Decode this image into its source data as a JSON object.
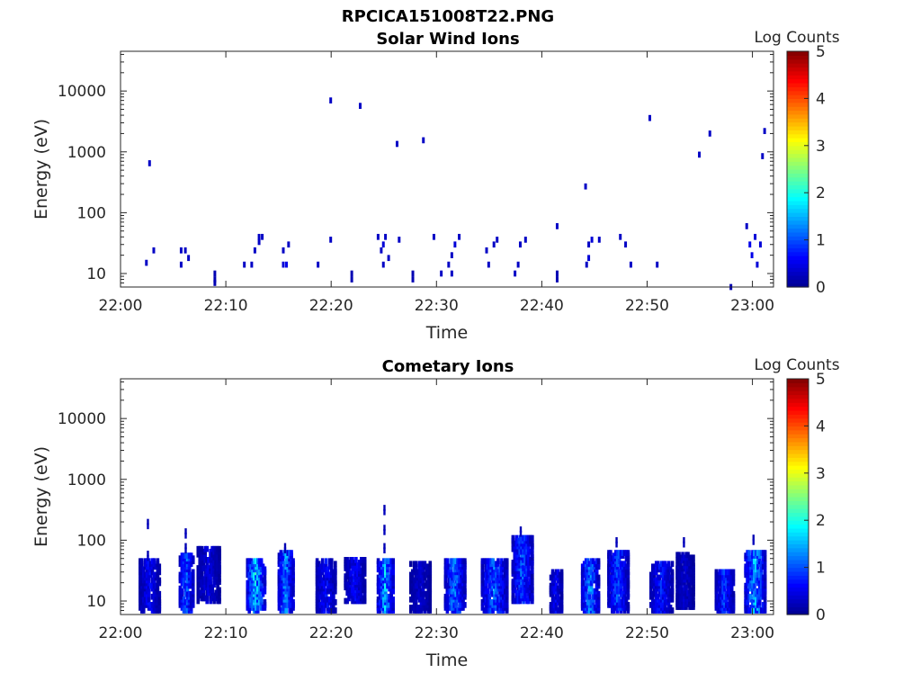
{
  "figure_title": "RPCICA151008T22.PNG",
  "colors": {
    "colormap": [
      "#00008f",
      "#0000ff",
      "#0080ff",
      "#00ffff",
      "#80ff80",
      "#ffff00",
      "#ff8000",
      "#ff0000",
      "#800000"
    ],
    "axis": "#262626"
  },
  "chart_data": [
    {
      "type": "heatmap",
      "title": "Solar Wind Ions",
      "xlabel": "Time",
      "ylabel": "Energy (eV)",
      "x_ticks": [
        "22:00",
        "22:10",
        "22:20",
        "22:30",
        "22:40",
        "22:50",
        "23:00"
      ],
      "x_range_minutes": [
        0,
        62
      ],
      "y_scale": "log",
      "y_ticks": [
        "10",
        "100",
        "1000",
        "10000"
      ],
      "y_range_eV": [
        6,
        45000
      ],
      "colorbar": {
        "label": "Log Counts",
        "range": [
          0,
          5
        ],
        "ticks": [
          "0",
          "1",
          "2",
          "3",
          "4",
          "5"
        ]
      },
      "cells": [
        [
          2.5,
          15,
          0.3
        ],
        [
          2.8,
          650,
          0.3
        ],
        [
          3.2,
          24,
          0.3
        ],
        [
          5.8,
          24,
          0.3
        ],
        [
          5.8,
          14,
          0.3
        ],
        [
          6.2,
          24,
          0.3
        ],
        [
          6.5,
          18,
          0.3
        ],
        [
          9.0,
          8,
          0.2
        ],
        [
          9.0,
          10,
          0.2
        ],
        [
          9.0,
          7,
          0.2
        ],
        [
          11.8,
          14,
          0.3
        ],
        [
          12.5,
          14,
          0.3
        ],
        [
          12.8,
          24,
          0.3
        ],
        [
          13.2,
          40,
          0.3
        ],
        [
          13.5,
          40,
          0.3
        ],
        [
          13.2,
          33,
          0.3
        ],
        [
          15.5,
          14,
          0.4
        ],
        [
          15.8,
          14,
          0.5
        ],
        [
          15.5,
          24,
          0.3
        ],
        [
          16.0,
          30,
          0.3
        ],
        [
          18.8,
          14,
          0.3
        ],
        [
          20.0,
          7000,
          0.3
        ],
        [
          20.0,
          36,
          0.3
        ],
        [
          22.0,
          10,
          0.2
        ],
        [
          22.0,
          8,
          0.2
        ],
        [
          22.8,
          5700,
          0.3
        ],
        [
          24.5,
          40,
          0.3
        ],
        [
          24.8,
          24,
          0.3
        ],
        [
          25.0,
          14,
          0.3
        ],
        [
          25.2,
          40,
          0.3
        ],
        [
          25.0,
          30,
          0.4
        ],
        [
          25.5,
          18,
          0.3
        ],
        [
          26.3,
          1350,
          0.3
        ],
        [
          26.5,
          36,
          0.3
        ],
        [
          27.8,
          10,
          0.2
        ],
        [
          27.8,
          8,
          0.2
        ],
        [
          28.8,
          1550,
          0.3
        ],
        [
          29.8,
          40,
          0.3
        ],
        [
          30.5,
          10,
          0.3
        ],
        [
          31.2,
          14,
          0.3
        ],
        [
          31.5,
          20,
          0.3
        ],
        [
          31.8,
          30,
          0.4
        ],
        [
          32.2,
          40,
          0.3
        ],
        [
          31.5,
          10,
          0.3
        ],
        [
          34.8,
          24,
          0.3
        ],
        [
          35.0,
          14,
          0.3
        ],
        [
          35.5,
          30,
          0.3
        ],
        [
          35.8,
          36,
          0.3
        ],
        [
          37.5,
          10,
          0.3
        ],
        [
          37.8,
          14,
          0.3
        ],
        [
          38.0,
          30,
          0.3
        ],
        [
          38.5,
          36,
          0.3
        ],
        [
          41.5,
          10,
          0.2
        ],
        [
          41.5,
          8,
          0.2
        ],
        [
          41.5,
          60,
          0.3
        ],
        [
          44.2,
          270,
          0.3
        ],
        [
          44.3,
          14,
          0.3
        ],
        [
          44.5,
          18,
          0.4
        ],
        [
          44.8,
          36,
          0.4
        ],
        [
          44.5,
          30,
          0.3
        ],
        [
          45.5,
          36,
          0.3
        ],
        [
          47.5,
          40,
          0.3
        ],
        [
          48.0,
          30,
          0.3
        ],
        [
          48.5,
          14,
          0.3
        ],
        [
          50.3,
          3600,
          0.3
        ],
        [
          51.0,
          14,
          0.3
        ],
        [
          55.0,
          900,
          0.3
        ],
        [
          56.0,
          2000,
          0.3
        ],
        [
          58.0,
          6,
          0.2
        ],
        [
          59.5,
          60,
          0.3
        ],
        [
          59.8,
          30,
          0.5
        ],
        [
          60.0,
          20,
          0.5
        ],
        [
          60.3,
          40,
          0.4
        ],
        [
          60.5,
          14,
          0.4
        ],
        [
          60.8,
          30,
          0.4
        ],
        [
          61.0,
          850,
          0.3
        ],
        [
          61.2,
          2200,
          0.3
        ]
      ]
    },
    {
      "type": "heatmap",
      "title": "Cometary Ions",
      "xlabel": "Time",
      "ylabel": "Energy (eV)",
      "x_ticks": [
        "22:00",
        "22:10",
        "22:20",
        "22:30",
        "22:40",
        "22:50",
        "23:00"
      ],
      "x_range_minutes": [
        0,
        62
      ],
      "y_scale": "log",
      "y_ticks": [
        "10",
        "100",
        "1000",
        "10000"
      ],
      "y_range_eV": [
        6,
        45000
      ],
      "colorbar": {
        "label": "Log Counts",
        "range": [
          0,
          5
        ],
        "ticks": [
          "0",
          "1",
          "2",
          "3",
          "4",
          "5"
        ]
      },
      "bursts": [
        {
          "start": 1.8,
          "end": 3.8,
          "low": 7,
          "high": 45,
          "peak": 0.8,
          "tail": [
            60,
            200
          ]
        },
        {
          "start": 5.6,
          "end": 7.0,
          "low": 7,
          "high": 55,
          "peak": 1.5,
          "tail": [
            80,
            140
          ]
        },
        {
          "start": 7.3,
          "end": 9.5,
          "low": 10,
          "high": 70,
          "peak": 0.6,
          "tail": []
        },
        {
          "start": 12.0,
          "end": 13.8,
          "low": 7,
          "high": 45,
          "peak": 2.2,
          "tail": []
        },
        {
          "start": 15.0,
          "end": 16.5,
          "low": 7,
          "high": 60,
          "peak": 1.7,
          "tail": [
            80
          ]
        },
        {
          "start": 18.6,
          "end": 20.5,
          "low": 7,
          "high": 45,
          "peak": 0.9,
          "tail": []
        },
        {
          "start": 21.3,
          "end": 23.3,
          "low": 10,
          "high": 45,
          "peak": 0.8,
          "tail": []
        },
        {
          "start": 24.4,
          "end": 26.0,
          "low": 7,
          "high": 45,
          "peak": 2.0,
          "tail": [
            80,
            160,
            340
          ]
        },
        {
          "start": 27.5,
          "end": 29.5,
          "low": 7,
          "high": 40,
          "peak": 0.5,
          "tail": []
        },
        {
          "start": 30.8,
          "end": 32.8,
          "low": 7,
          "high": 45,
          "peak": 1.6,
          "tail": []
        },
        {
          "start": 34.3,
          "end": 36.8,
          "low": 7,
          "high": 45,
          "peak": 1.5,
          "tail": []
        },
        {
          "start": 37.2,
          "end": 39.2,
          "low": 10,
          "high": 110,
          "peak": 1.4,
          "tail": [
            150
          ]
        },
        {
          "start": 40.8,
          "end": 42.0,
          "low": 7,
          "high": 30,
          "peak": 0.8,
          "tail": []
        },
        {
          "start": 43.8,
          "end": 45.5,
          "low": 7,
          "high": 45,
          "peak": 1.8,
          "tail": []
        },
        {
          "start": 46.3,
          "end": 48.3,
          "low": 7,
          "high": 60,
          "peak": 1.3,
          "tail": [
            100
          ]
        },
        {
          "start": 50.3,
          "end": 52.5,
          "low": 7,
          "high": 40,
          "peak": 1.0,
          "tail": []
        },
        {
          "start": 52.8,
          "end": 54.5,
          "low": 8,
          "high": 60,
          "peak": 0.5,
          "tail": [
            100
          ]
        },
        {
          "start": 56.5,
          "end": 58.3,
          "low": 7,
          "high": 30,
          "peak": 1.2,
          "tail": []
        },
        {
          "start": 59.3,
          "end": 61.3,
          "low": 7,
          "high": 60,
          "peak": 2.0,
          "tail": [
            110
          ]
        }
      ]
    }
  ]
}
